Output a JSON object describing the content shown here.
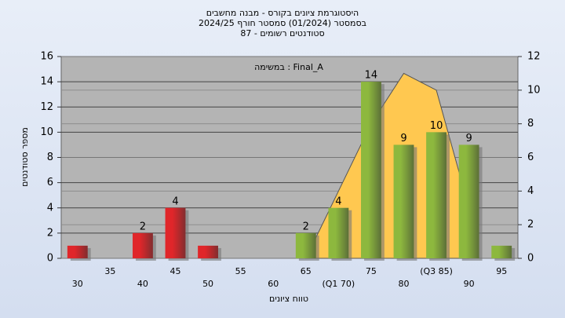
{
  "chart_data": {
    "type": "bar",
    "title": "היסטוגרמת ציונים בקורס - מבנה מחשבים",
    "subtitle": "בסמסטר  (01/2024)  סמסטר חורף 2024/25",
    "subtitle2": "סטודנטים רשומים - 87",
    "annotation": "במשימה : Final_A",
    "x_label": "טווח ציונים",
    "y_label": "מספר סטודנטים",
    "categories": [
      "30",
      "35",
      "40",
      "45",
      "50",
      "55",
      "60",
      "65",
      "(Q1 70)",
      "75",
      "80",
      "(Q3 85)",
      "90",
      "95"
    ],
    "values": [
      1,
      0,
      2,
      4,
      1,
      0,
      0,
      2,
      4,
      14,
      9,
      10,
      9,
      1
    ],
    "value_labels": [
      null,
      null,
      "2",
      "4",
      null,
      null,
      null,
      "2",
      "4",
      "14",
      "9",
      "10",
      "9",
      null
    ],
    "colors": [
      "#e0262a",
      "#e0262a",
      "#e0262a",
      "#e0262a",
      "#e0262a",
      "#e0262a",
      "#8db83e",
      "#8db83e",
      "#8db83e",
      "#8db83e",
      "#8db83e",
      "#8db83e",
      "#8db83e",
      "#8db83e"
    ],
    "ylim": [
      0,
      16
    ],
    "yticks": [
      0,
      2,
      4,
      6,
      8,
      10,
      12,
      14,
      16
    ],
    "y2lim": [
      0,
      12
    ],
    "y2ticks": [
      0,
      2,
      4,
      6,
      8,
      10,
      12
    ],
    "series": [
      {
        "type": "area",
        "axis": "y2",
        "color": "#ffc850",
        "values": [
          null,
          null,
          null,
          null,
          null,
          null,
          null,
          0,
          4,
          8,
          11,
          10,
          3,
          null
        ]
      }
    ],
    "grid": true
  }
}
